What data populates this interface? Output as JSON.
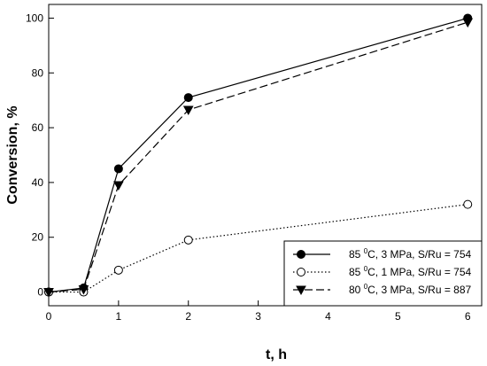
{
  "chart_data": {
    "type": "line",
    "title": "",
    "xlabel": "t, h",
    "ylabel": "Conversion, %",
    "xlim": [
      0,
      6.2
    ],
    "ylim": [
      -5,
      105
    ],
    "xticks": [
      0,
      1,
      2,
      3,
      4,
      5,
      6
    ],
    "yticks": [
      0,
      20,
      40,
      60,
      80,
      100
    ],
    "grid": false,
    "legend_position": "bottom-right",
    "series": [
      {
        "name_parts": [
          "85 ",
          "0",
          "C, 3 MPa, S/Ru = 754"
        ],
        "x": [
          0,
          0.5,
          1,
          2,
          6
        ],
        "y": [
          0,
          1.5,
          45,
          71,
          100
        ],
        "line_style": "solid",
        "marker": "filled-circle",
        "color": "#000000"
      },
      {
        "name_parts": [
          "85 ",
          "0",
          "C, 1 MPa, S/Ru = 754"
        ],
        "x": [
          0,
          0.5,
          1,
          2,
          6
        ],
        "y": [
          0,
          0,
          8,
          19,
          32
        ],
        "line_style": "dotted",
        "marker": "open-circle",
        "color": "#000000"
      },
      {
        "name_parts": [
          "80 ",
          "0",
          "C, 3 MPa, S/Ru = 887"
        ],
        "x": [
          0,
          0.5,
          1,
          2,
          6
        ],
        "y": [
          0,
          1,
          39,
          66.5,
          98.5
        ],
        "line_style": "dashed",
        "marker": "filled-triangle-down",
        "color": "#000000"
      }
    ]
  }
}
